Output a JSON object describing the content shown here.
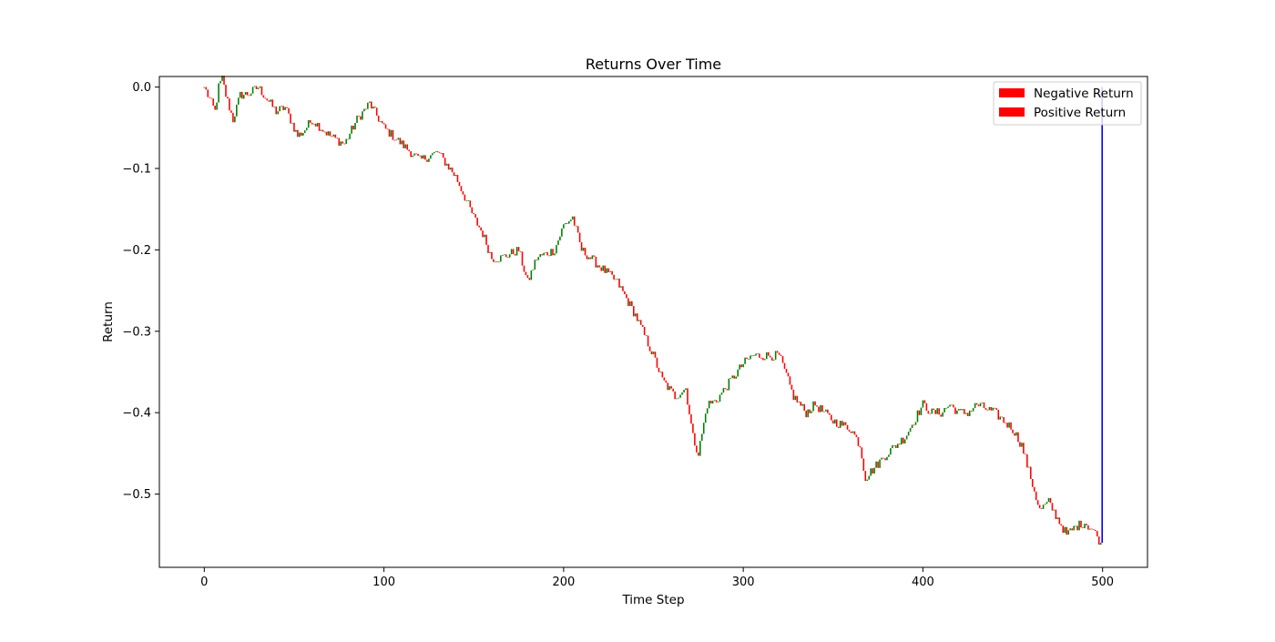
{
  "chart_data": {
    "type": "bar",
    "title": "Returns Over Time",
    "xlabel": "Time Step",
    "ylabel": "Return",
    "xlim": [
      -25,
      525
    ],
    "ylim": [
      -0.59,
      0.013
    ],
    "xticks": [
      0,
      100,
      200,
      300,
      400,
      500
    ],
    "yticks": [
      0.0,
      -0.1,
      -0.2,
      -0.3,
      -0.4,
      -0.5
    ],
    "xtick_labels": [
      "0",
      "100",
      "200",
      "300",
      "400",
      "500"
    ],
    "ytick_labels": [
      "0.0",
      "−0.1",
      "−0.2",
      "−0.3",
      "−0.4",
      "−0.5"
    ],
    "grid": false,
    "legend_position": "upper right",
    "legend": [
      {
        "label": "Negative Return",
        "color": "#ff0000"
      },
      {
        "label": "Positive Return",
        "color": "#ff0000"
      }
    ],
    "colors": {
      "negative": "#ff0000",
      "positive": "#008000",
      "final_marker": "#0000ff"
    },
    "n_steps": 500,
    "cumulative_anchors": {
      "x": [
        0,
        6,
        8,
        10,
        12,
        16,
        20,
        25,
        30,
        35,
        40,
        45,
        52,
        55,
        60,
        65,
        70,
        78,
        85,
        92,
        100,
        110,
        120,
        130,
        140,
        150,
        155,
        160,
        165,
        175,
        180,
        185,
        195,
        200,
        205,
        210,
        220,
        230,
        240,
        250,
        255,
        262,
        268,
        272,
        275,
        280,
        285,
        290,
        300,
        305,
        310,
        315,
        320,
        328,
        335,
        340,
        350,
        360,
        365,
        368,
        372,
        380,
        390,
        395,
        400,
        405,
        410,
        415,
        420,
        425,
        430,
        440,
        450,
        455,
        460,
        465,
        470,
        475,
        480,
        485,
        490,
        495,
        499
      ],
      "y": [
        0.0,
        -0.03,
        0.0,
        0.01,
        -0.01,
        -0.04,
        -0.01,
        -0.008,
        0.0,
        -0.015,
        -0.03,
        -0.025,
        -0.06,
        -0.055,
        -0.04,
        -0.05,
        -0.06,
        -0.07,
        -0.04,
        -0.02,
        -0.05,
        -0.07,
        -0.09,
        -0.08,
        -0.11,
        -0.16,
        -0.18,
        -0.21,
        -0.21,
        -0.2,
        -0.24,
        -0.21,
        -0.2,
        -0.17,
        -0.16,
        -0.2,
        -0.22,
        -0.24,
        -0.28,
        -0.33,
        -0.36,
        -0.38,
        -0.37,
        -0.43,
        -0.45,
        -0.39,
        -0.385,
        -0.37,
        -0.34,
        -0.33,
        -0.33,
        -0.33,
        -0.33,
        -0.38,
        -0.4,
        -0.39,
        -0.41,
        -0.42,
        -0.44,
        -0.48,
        -0.47,
        -0.45,
        -0.43,
        -0.41,
        -0.39,
        -0.4,
        -0.4,
        -0.39,
        -0.4,
        -0.4,
        -0.39,
        -0.4,
        -0.42,
        -0.44,
        -0.48,
        -0.52,
        -0.51,
        -0.53,
        -0.55,
        -0.54,
        -0.535,
        -0.545,
        -0.56
      ]
    },
    "final_value": -0.56
  }
}
